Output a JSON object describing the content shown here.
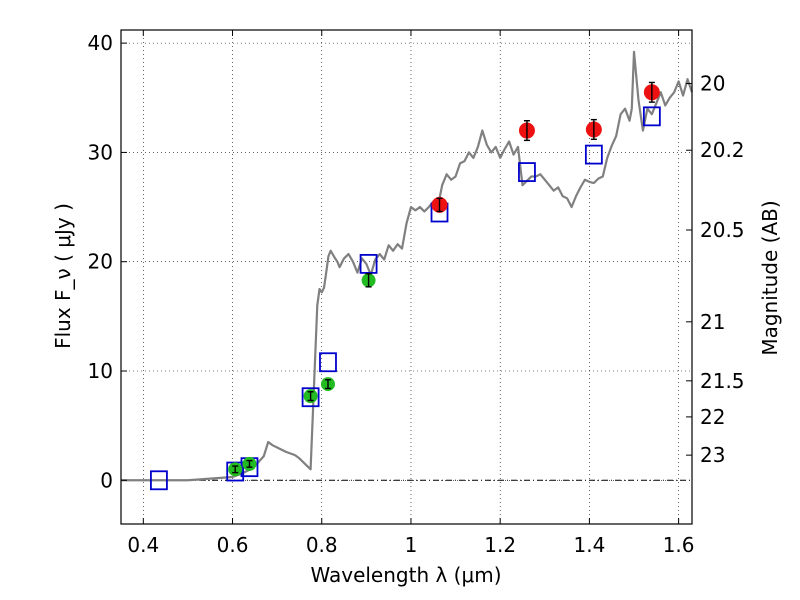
{
  "chart_data": {
    "type": "scatter",
    "xlabel": "Wavelength  λ (μm)",
    "ylabel": "Flux  F_ν  ( μJy )",
    "y2label": "Magnitude (AB)",
    "xlim": [
      0.35,
      1.63
    ],
    "ylim": [
      -4,
      41.2
    ],
    "grid": true,
    "x_ticks": [
      0.4,
      0.6,
      0.8,
      1.0,
      1.2,
      1.4,
      1.6
    ],
    "x_tick_labels": [
      "0.4",
      "0.6",
      "0.8",
      "1",
      "1.2",
      "1.4",
      "1.6"
    ],
    "y_ticks": [
      0,
      10,
      20,
      30,
      40
    ],
    "y_tick_labels": [
      "0",
      "10",
      "20",
      "30",
      "40"
    ],
    "y2_ticks": [
      {
        "flux": 36.3,
        "label": "20"
      },
      {
        "flux": 30.2,
        "label": "20.2"
      },
      {
        "flux": 22.9,
        "label": "20.5"
      },
      {
        "flux": 14.5,
        "label": "21"
      },
      {
        "flux": 9.1,
        "label": "21.5"
      },
      {
        "flux": 5.8,
        "label": "22"
      },
      {
        "flux": 2.3,
        "label": "23"
      }
    ],
    "colors": {
      "model": "#808080",
      "model_photometry": "#0000cc",
      "optical_data": "#22bb22",
      "nir_data": "#ee1111"
    },
    "series": [
      {
        "kind": "model_spectrum",
        "x": [
          0.35,
          0.5,
          0.6,
          0.62,
          0.64,
          0.65,
          0.67,
          0.68,
          0.69,
          0.7,
          0.72,
          0.74,
          0.75,
          0.76,
          0.77,
          0.775,
          0.78,
          0.785,
          0.79,
          0.795,
          0.8,
          0.805,
          0.81,
          0.815,
          0.82,
          0.83,
          0.835,
          0.84,
          0.85,
          0.86,
          0.87,
          0.88,
          0.89,
          0.9,
          0.91,
          0.92,
          0.93,
          0.94,
          0.95,
          0.96,
          0.97,
          0.98,
          0.99,
          1.0,
          1.01,
          1.02,
          1.03,
          1.04,
          1.05,
          1.06,
          1.07,
          1.08,
          1.09,
          1.1,
          1.11,
          1.12,
          1.13,
          1.14,
          1.15,
          1.16,
          1.17,
          1.18,
          1.19,
          1.2,
          1.21,
          1.22,
          1.23,
          1.24,
          1.25,
          1.26,
          1.27,
          1.28,
          1.29,
          1.3,
          1.31,
          1.32,
          1.33,
          1.34,
          1.35,
          1.36,
          1.37,
          1.38,
          1.39,
          1.4,
          1.41,
          1.42,
          1.43,
          1.44,
          1.45,
          1.46,
          1.47,
          1.48,
          1.49,
          1.495,
          1.5,
          1.51,
          1.52,
          1.53,
          1.54,
          1.55,
          1.56,
          1.57,
          1.58,
          1.59,
          1.6,
          1.61,
          1.62,
          1.63
        ],
        "y": [
          0,
          0,
          0.3,
          0.6,
          1.0,
          1.3,
          2.2,
          3.5,
          3.2,
          3.0,
          2.6,
          2.3,
          2.0,
          1.6,
          1.2,
          1.0,
          6.0,
          11.0,
          16.0,
          17.5,
          17.2,
          17.6,
          19.0,
          20.5,
          21.0,
          20.3,
          20.0,
          19.5,
          20.3,
          20.7,
          20.0,
          19.0,
          20.3,
          19.8,
          18.8,
          20.2,
          20.7,
          20.2,
          21.5,
          21.0,
          21.6,
          21.2,
          23.5,
          25.0,
          24.7,
          25.0,
          24.6,
          25.0,
          25.5,
          25.0,
          27.0,
          28.0,
          27.5,
          27.8,
          29.0,
          29.2,
          30.0,
          29.5,
          30.5,
          32.0,
          30.7,
          30.0,
          30.5,
          29.5,
          30.3,
          31.0,
          29.8,
          30.5,
          27.0,
          27.4,
          27.8,
          27.8,
          28.0,
          27.5,
          27.0,
          26.5,
          26.8,
          26.0,
          25.8,
          25.0,
          26.0,
          26.8,
          27.5,
          27.3,
          27.2,
          27.6,
          27.8,
          29.5,
          30.6,
          31.5,
          33.5,
          34.0,
          32.9,
          34.0,
          39.2,
          34.8,
          32.0,
          34.0,
          33.5,
          34.5,
          35.5,
          34.3,
          35.0,
          35.5,
          36.5,
          35.2,
          36.7,
          35.5
        ]
      },
      {
        "kind": "model_photometry",
        "x": [
          0.435,
          0.606,
          0.638,
          0.775,
          0.814,
          0.905,
          1.064,
          1.26,
          1.41,
          1.54
        ],
        "y": [
          0,
          0.8,
          1.2,
          7.6,
          10.8,
          19.8,
          24.5,
          28.2,
          29.8,
          33.3
        ]
      },
      {
        "kind": "optical_data",
        "x": [
          0.606,
          0.638,
          0.775,
          0.814,
          0.905
        ],
        "y": [
          1.0,
          1.5,
          7.7,
          8.8,
          18.3
        ],
        "yerr": [
          0.3,
          0.3,
          0.4,
          0.4,
          0.6
        ]
      },
      {
        "kind": "nir_data",
        "x": [
          1.064,
          1.26,
          1.41,
          1.54
        ],
        "y": [
          25.2,
          32.0,
          32.1,
          35.5
        ],
        "yerr": [
          0.6,
          0.9,
          0.9,
          0.9
        ]
      }
    ]
  }
}
